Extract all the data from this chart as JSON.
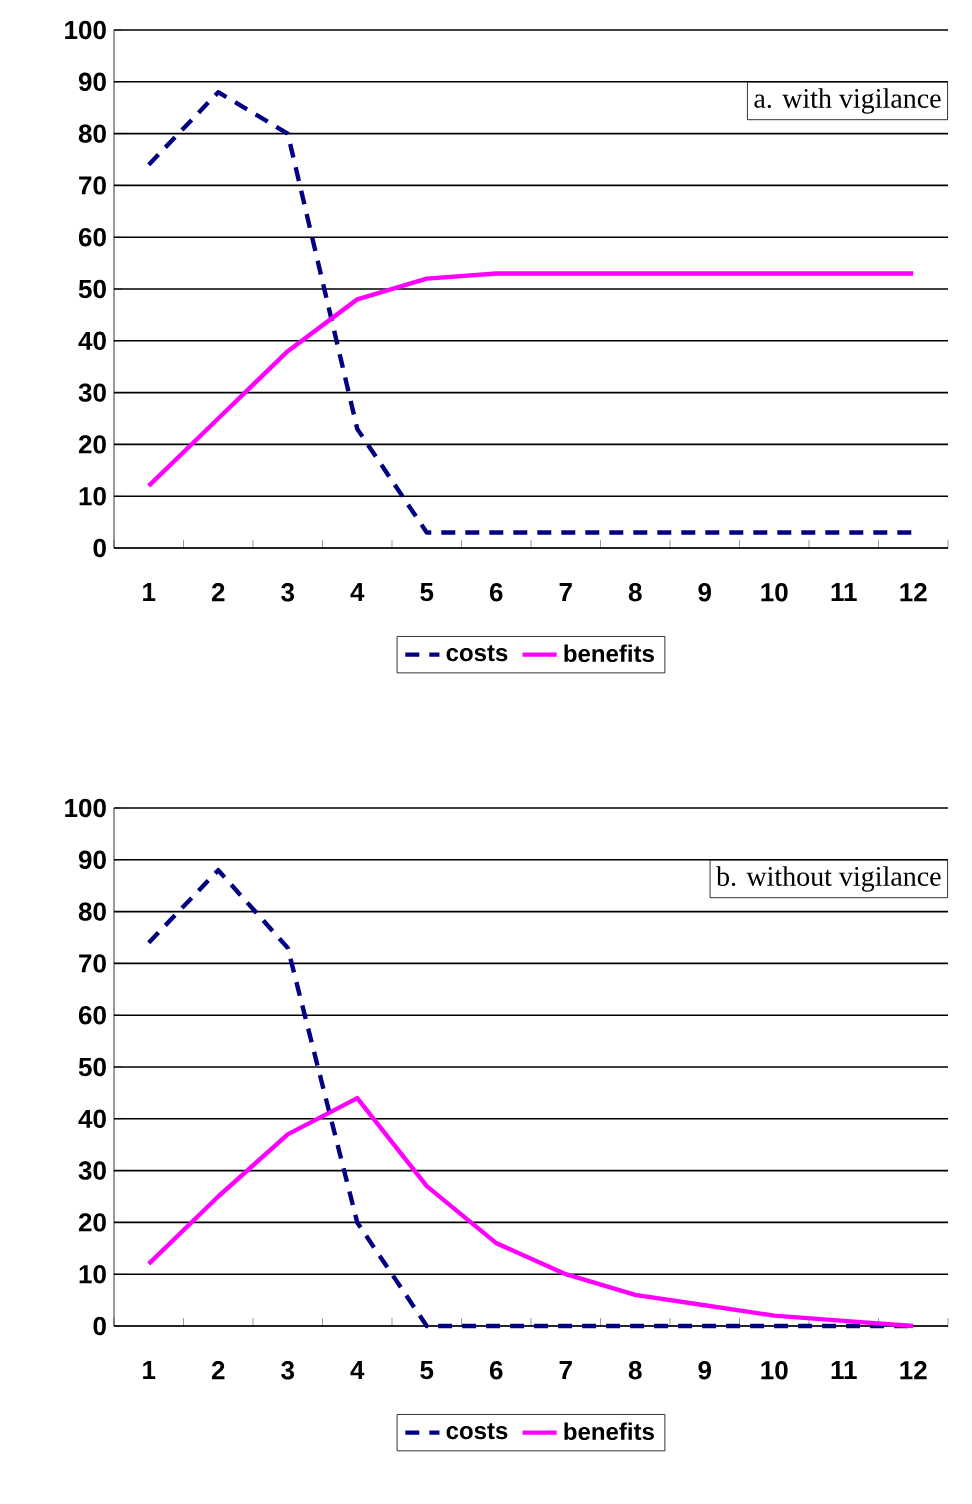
{
  "chart_data": [
    {
      "type": "line",
      "categories": [
        "1",
        "2",
        "3",
        "4",
        "5",
        "6",
        "7",
        "8",
        "9",
        "10",
        "11",
        "12"
      ],
      "series": [
        {
          "name": "costs",
          "color": "#000080",
          "line_style": "dashed",
          "values": [
            74,
            88,
            80,
            23,
            3,
            3,
            3,
            3,
            3,
            3,
            3,
            3
          ]
        },
        {
          "name": "benefits",
          "color": "#ff00ff",
          "line_style": "solid",
          "values": [
            12,
            25,
            38,
            48,
            52,
            53,
            53,
            53,
            53,
            53,
            53,
            53
          ]
        }
      ],
      "ylim": [
        0,
        100
      ],
      "yticks": [
        0,
        10,
        20,
        30,
        40,
        50,
        60,
        70,
        80,
        90,
        100
      ],
      "grid": "y",
      "legend": "bottom",
      "annotations": [
        "a. with vigilance"
      ]
    },
    {
      "type": "line",
      "categories": [
        "1",
        "2",
        "3",
        "4",
        "5",
        "6",
        "7",
        "8",
        "9",
        "10",
        "11",
        "12"
      ],
      "series": [
        {
          "name": "costs",
          "color": "#000080",
          "line_style": "dashed",
          "values": [
            74,
            88,
            73,
            20,
            0,
            0,
            0,
            0,
            0,
            0,
            0,
            0
          ]
        },
        {
          "name": "benefits",
          "color": "#ff00ff",
          "line_style": "solid",
          "values": [
            12,
            25,
            37,
            44,
            27,
            16,
            10,
            6,
            4,
            2,
            1,
            0
          ]
        }
      ],
      "ylim": [
        0,
        100
      ],
      "yticks": [
        0,
        10,
        20,
        30,
        40,
        50,
        60,
        70,
        80,
        90,
        100
      ],
      "grid": "y",
      "legend": "bottom",
      "annotations": [
        "b. without vigilance"
      ]
    }
  ]
}
